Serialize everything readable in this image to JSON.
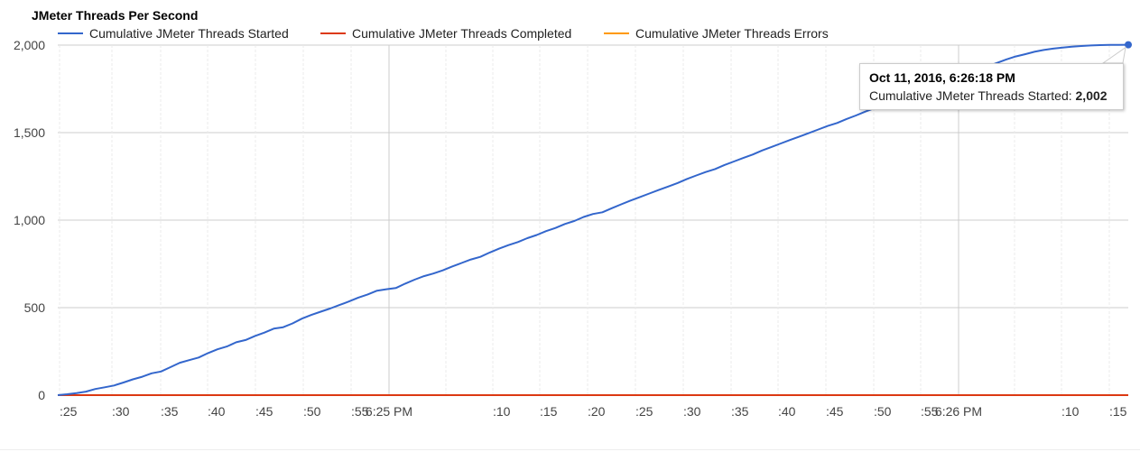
{
  "chart_data": {
    "type": "line",
    "title": "JMeter Threads Per Second",
    "ylim": [
      0,
      2000
    ],
    "yticks": [
      "0",
      "500",
      "1,000",
      "1,500",
      "2,000"
    ],
    "ytick_values": [
      0,
      500,
      1000,
      1500,
      2000
    ],
    "xlim": [
      "6:24:24 PM",
      "6:26:18 PM"
    ],
    "xticks": [
      {
        "label": ":25",
        "time": "6:24:25 PM",
        "major": false
      },
      {
        "label": ":30",
        "time": "6:24:30 PM",
        "major": false
      },
      {
        "label": ":35",
        "time": "6:24:35 PM",
        "major": false
      },
      {
        "label": ":40",
        "time": "6:24:40 PM",
        "major": false
      },
      {
        "label": ":45",
        "time": "6:24:45 PM",
        "major": false
      },
      {
        "label": ":50",
        "time": "6:24:50 PM",
        "major": false
      },
      {
        "label": ":55",
        "time": "6:24:55 PM",
        "major": false
      },
      {
        "label": "6:25 PM",
        "time": "6:25:00 PM",
        "major": true
      },
      {
        "label": "",
        "time": "6:25:05 PM",
        "major": false
      },
      {
        "label": ":10",
        "time": "6:25:10 PM",
        "major": false
      },
      {
        "label": ":15",
        "time": "6:25:15 PM",
        "major": false
      },
      {
        "label": ":20",
        "time": "6:25:20 PM",
        "major": false
      },
      {
        "label": ":25",
        "time": "6:25:25 PM",
        "major": false
      },
      {
        "label": ":30",
        "time": "6:25:30 PM",
        "major": false
      },
      {
        "label": ":35",
        "time": "6:25:35 PM",
        "major": false
      },
      {
        "label": ":40",
        "time": "6:25:40 PM",
        "major": false
      },
      {
        "label": ":45",
        "time": "6:25:45 PM",
        "major": false
      },
      {
        "label": ":50",
        "time": "6:25:50 PM",
        "major": false
      },
      {
        "label": ":55",
        "time": "6:25:55 PM",
        "major": false
      },
      {
        "label": "6:26 PM",
        "time": "6:26:00 PM",
        "major": true
      },
      {
        "label": "",
        "time": "6:26:05 PM",
        "major": false
      },
      {
        "label": ":10",
        "time": "6:26:10 PM",
        "major": false
      },
      {
        "label": ":15",
        "time": "6:26:15 PM",
        "major": false
      }
    ],
    "legend_position": "top",
    "grid": true,
    "series": [
      {
        "name": "Cumulative JMeter Threads Started",
        "color": "#3366cc",
        "points": [
          [
            "6:24:24 PM",
            0
          ],
          [
            "6:24:25 PM",
            5
          ],
          [
            "6:24:26 PM",
            12
          ],
          [
            "6:24:27 PM",
            20
          ],
          [
            "6:24:28 PM",
            35
          ],
          [
            "6:24:29 PM",
            45
          ],
          [
            "6:24:30 PM",
            55
          ],
          [
            "6:24:31 PM",
            72
          ],
          [
            "6:24:32 PM",
            90
          ],
          [
            "6:24:33 PM",
            105
          ],
          [
            "6:24:34 PM",
            125
          ],
          [
            "6:24:35 PM",
            135
          ],
          [
            "6:24:36 PM",
            160
          ],
          [
            "6:24:37 PM",
            185
          ],
          [
            "6:24:38 PM",
            200
          ],
          [
            "6:24:39 PM",
            215
          ],
          [
            "6:24:40 PM",
            240
          ],
          [
            "6:24:41 PM",
            262
          ],
          [
            "6:24:42 PM",
            278
          ],
          [
            "6:24:43 PM",
            302
          ],
          [
            "6:24:44 PM",
            315
          ],
          [
            "6:24:45 PM",
            338
          ],
          [
            "6:24:46 PM",
            357
          ],
          [
            "6:24:47 PM",
            380
          ],
          [
            "6:24:48 PM",
            388
          ],
          [
            "6:24:49 PM",
            410
          ],
          [
            "6:24:50 PM",
            437
          ],
          [
            "6:24:51 PM",
            458
          ],
          [
            "6:24:52 PM",
            477
          ],
          [
            "6:24:53 PM",
            495
          ],
          [
            "6:24:54 PM",
            515
          ],
          [
            "6:24:55 PM",
            535
          ],
          [
            "6:24:56 PM",
            557
          ],
          [
            "6:24:57 PM",
            575
          ],
          [
            "6:24:58 PM",
            597
          ],
          [
            "6:24:59 PM",
            605
          ],
          [
            "6:25:00 PM",
            612
          ],
          [
            "6:25:01 PM",
            637
          ],
          [
            "6:25:02 PM",
            660
          ],
          [
            "6:25:03 PM",
            680
          ],
          [
            "6:25:04 PM",
            695
          ],
          [
            "6:25:05 PM",
            713
          ],
          [
            "6:25:06 PM",
            735
          ],
          [
            "6:25:07 PM",
            755
          ],
          [
            "6:25:08 PM",
            775
          ],
          [
            "6:25:09 PM",
            790
          ],
          [
            "6:25:10 PM",
            815
          ],
          [
            "6:25:11 PM",
            837
          ],
          [
            "6:25:12 PM",
            857
          ],
          [
            "6:25:13 PM",
            875
          ],
          [
            "6:25:14 PM",
            897
          ],
          [
            "6:25:15 PM",
            915
          ],
          [
            "6:25:16 PM",
            937
          ],
          [
            "6:25:17 PM",
            955
          ],
          [
            "6:25:18 PM",
            978
          ],
          [
            "6:25:19 PM",
            995
          ],
          [
            "6:25:20 PM",
            1018
          ],
          [
            "6:25:21 PM",
            1035
          ],
          [
            "6:25:22 PM",
            1045
          ],
          [
            "6:25:23 PM",
            1068
          ],
          [
            "6:25:24 PM",
            1090
          ],
          [
            "6:25:25 PM",
            1112
          ],
          [
            "6:25:26 PM",
            1132
          ],
          [
            "6:25:27 PM",
            1152
          ],
          [
            "6:25:28 PM",
            1172
          ],
          [
            "6:25:29 PM",
            1192
          ],
          [
            "6:25:30 PM",
            1212
          ],
          [
            "6:25:31 PM",
            1235
          ],
          [
            "6:25:32 PM",
            1255
          ],
          [
            "6:25:33 PM",
            1275
          ],
          [
            "6:25:34 PM",
            1292
          ],
          [
            "6:25:35 PM",
            1315
          ],
          [
            "6:25:36 PM",
            1335
          ],
          [
            "6:25:37 PM",
            1355
          ],
          [
            "6:25:38 PM",
            1375
          ],
          [
            "6:25:39 PM",
            1398
          ],
          [
            "6:25:40 PM",
            1418
          ],
          [
            "6:25:41 PM",
            1438
          ],
          [
            "6:25:42 PM",
            1458
          ],
          [
            "6:25:43 PM",
            1478
          ],
          [
            "6:25:44 PM",
            1498
          ],
          [
            "6:25:45 PM",
            1518
          ],
          [
            "6:25:46 PM",
            1538
          ],
          [
            "6:25:47 PM",
            1555
          ],
          [
            "6:25:48 PM",
            1578
          ],
          [
            "6:25:49 PM",
            1598
          ],
          [
            "6:25:50 PM",
            1620
          ],
          [
            "6:25:51 PM",
            1640
          ],
          [
            "6:25:52 PM",
            1660
          ],
          [
            "6:25:53 PM",
            1680
          ],
          [
            "6:25:54 PM",
            1700
          ],
          [
            "6:25:55 PM",
            1718
          ],
          [
            "6:25:56 PM",
            1738
          ],
          [
            "6:25:57 PM",
            1758
          ],
          [
            "6:25:58 PM",
            1778
          ],
          [
            "6:25:59 PM",
            1798
          ],
          [
            "6:26:00 PM",
            1818
          ],
          [
            "6:26:01 PM",
            1838
          ],
          [
            "6:26:02 PM",
            1858
          ],
          [
            "6:26:03 PM",
            1878
          ],
          [
            "6:26:04 PM",
            1898
          ],
          [
            "6:26:05 PM",
            1918
          ],
          [
            "6:26:06 PM",
            1935
          ],
          [
            "6:26:07 PM",
            1948
          ],
          [
            "6:26:08 PM",
            1962
          ],
          [
            "6:26:09 PM",
            1972
          ],
          [
            "6:26:10 PM",
            1980
          ],
          [
            "6:26:11 PM",
            1986
          ],
          [
            "6:26:12 PM",
            1991
          ],
          [
            "6:26:13 PM",
            1995
          ],
          [
            "6:26:14 PM",
            1998
          ],
          [
            "6:26:15 PM",
            2000
          ],
          [
            "6:26:16 PM",
            2001
          ],
          [
            "6:26:17 PM",
            2001
          ],
          [
            "6:26:18 PM",
            2002
          ]
        ]
      },
      {
        "name": "Cumulative JMeter Threads Completed",
        "color": "#dc3912",
        "points": [
          [
            "6:24:24 PM",
            0
          ],
          [
            "6:26:18 PM",
            0
          ]
        ]
      },
      {
        "name": "Cumulative JMeter Threads Errors",
        "color": "#ff9900",
        "points": [
          [
            "6:24:24 PM",
            0
          ],
          [
            "6:26:18 PM",
            0
          ]
        ]
      }
    ]
  },
  "tooltip": {
    "title": "Oct 11, 2016, 6:26:18 PM",
    "label": "Cumulative JMeter Threads Started:",
    "value": "2,002"
  }
}
